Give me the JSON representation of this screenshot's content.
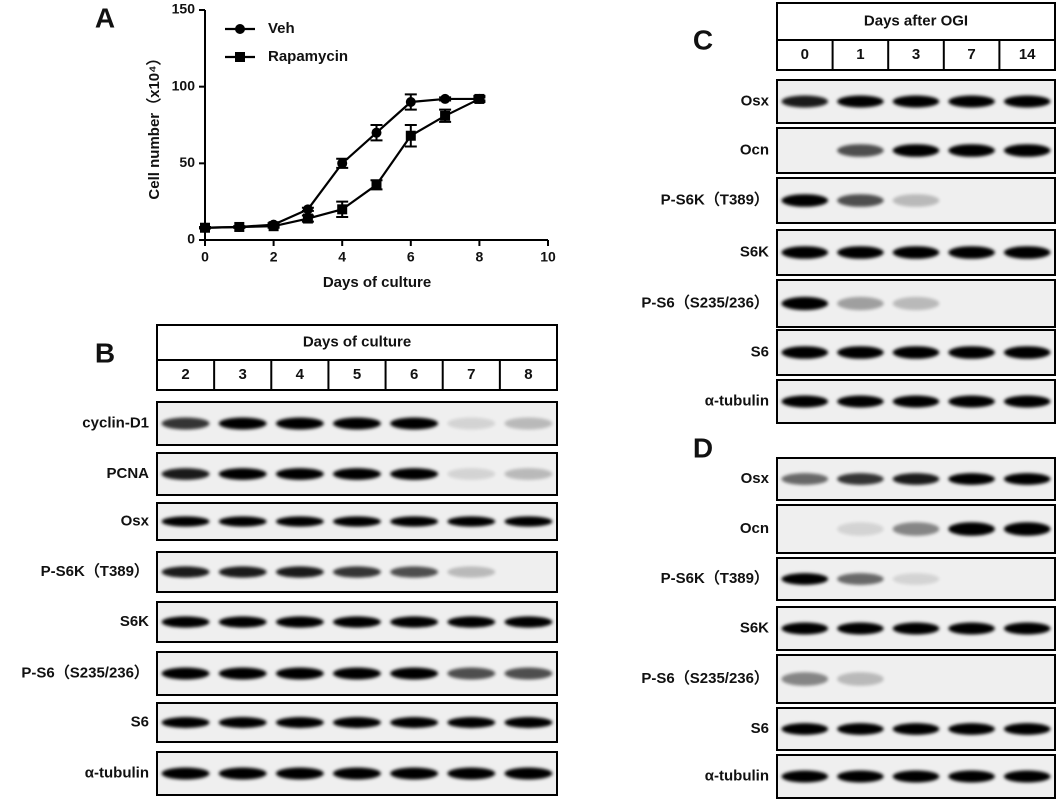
{
  "chart_data": {
    "type": "line",
    "panel": "A",
    "xlabel": "Days of culture",
    "ylabel": "Cell number（x10⁴）",
    "x": [
      0,
      1,
      2,
      3,
      4,
      5,
      6,
      7,
      8
    ],
    "series": [
      {
        "name": "Veh",
        "color": "#000000",
        "marker": "circle",
        "values": [
          8,
          8.5,
          10,
          20,
          50,
          70,
          90,
          92,
          92
        ],
        "errors": [
          0.5,
          0.5,
          1,
          1,
          3,
          5,
          5,
          1,
          1
        ]
      },
      {
        "name": "Rapamycin",
        "color": "#000000",
        "marker": "square",
        "values": [
          8,
          8.5,
          9,
          14,
          20,
          36,
          68,
          81,
          92
        ],
        "errors": [
          0.5,
          0.5,
          1,
          2,
          5,
          3,
          7,
          4,
          2
        ]
      }
    ],
    "xlim": [
      0,
      10
    ],
    "xticks": [
      0,
      2,
      4,
      6,
      8,
      10
    ],
    "ylim": [
      0,
      150
    ],
    "yticks": [
      0,
      50,
      100,
      150
    ],
    "legend": "upper left"
  },
  "blots": {
    "B": {
      "label": "B",
      "header": "Days of culture",
      "lanes": [
        "2",
        "3",
        "4",
        "5",
        "6",
        "7",
        "8"
      ],
      "rows": [
        "cyclin-D1",
        "PCNA",
        "Osx",
        "P-S6K（T389）",
        "S6K",
        "P-S6（S235/236）",
        "S6",
        "α-tubulin"
      ]
    },
    "C": {
      "label": "C",
      "header": "Days after OGI",
      "lanes": [
        "0",
        "1",
        "3",
        "7",
        "14"
      ],
      "rows": [
        "Osx",
        "Ocn",
        "P-S6K（T389）",
        "S6K",
        "P-S6（S235/236）",
        "S6",
        "α-tubulin"
      ]
    },
    "D": {
      "label": "D",
      "rows": [
        "Osx",
        "Ocn",
        "P-S6K（T389）",
        "S6K",
        "P-S6（S235/236）",
        "S6",
        "α-tubulin"
      ]
    }
  }
}
